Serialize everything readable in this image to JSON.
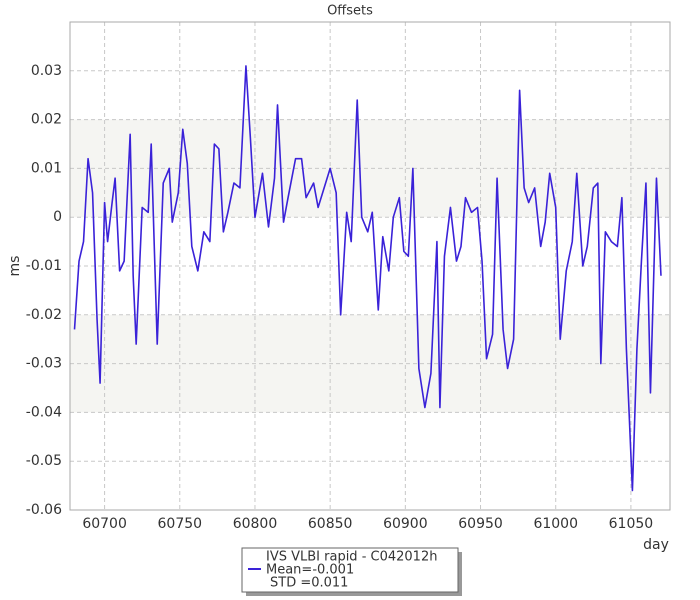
{
  "chart_data": {
    "type": "line",
    "title": "Offsets",
    "x_label": "day",
    "y_label": "ms",
    "xlim": [
      60677,
      61076
    ],
    "ylim": [
      -0.06,
      0.04
    ],
    "xticks": [
      60700,
      60750,
      60800,
      60850,
      60900,
      60950,
      61000,
      61050
    ],
    "yticks": [
      0.03,
      0.02,
      0.01,
      0,
      -0.01,
      -0.02,
      -0.03,
      -0.04,
      -0.05,
      -0.06
    ],
    "grid": true,
    "legend_position": "bottom",
    "x": [
      60680,
      60683,
      60686,
      60689,
      60692,
      60695,
      60697,
      60700,
      60702,
      60705,
      60707,
      60710,
      60713,
      60717,
      60719,
      60721,
      60725,
      60729,
      60731,
      60735,
      60739,
      60743,
      60745,
      60749,
      60752,
      60755,
      60758,
      60762,
      60766,
      60770,
      60773,
      60776,
      60779,
      60782,
      60786,
      60790,
      60794,
      60797,
      60800,
      60805,
      60809,
      60813,
      60815,
      60819,
      60822,
      60827,
      60831,
      60834,
      60839,
      60842,
      60846,
      60850,
      60854,
      60857,
      60861,
      60864,
      60868,
      60871,
      60875,
      60878,
      60882,
      60885,
      60889,
      60892,
      60896,
      60899,
      60902,
      60905,
      60909,
      60913,
      60917,
      60921,
      60923,
      60926,
      60930,
      60934,
      60937,
      60940,
      60944,
      60948,
      60951,
      60954,
      60958,
      60961,
      60965,
      60968,
      60972,
      60976,
      60979,
      60982,
      60986,
      60990,
      60993,
      60996,
      61000,
      61003,
      61007,
      61011,
      61014,
      61018,
      61021,
      61025,
      61028,
      61030,
      61033,
      61037,
      61041,
      61044,
      61047,
      61051,
      61054,
      61057,
      61060,
      61063,
      61067,
      61070
    ],
    "series": [
      {
        "name": "IVS VLBI rapid - C042012h",
        "stats": [
          "Mean=-0.001",
          "STD =0.011"
        ],
        "color": "#3a22d8",
        "values": [
          -0.023,
          -0.009,
          -0.005,
          0.012,
          0.005,
          -0.021,
          -0.034,
          0.003,
          -0.005,
          0.003,
          0.008,
          -0.011,
          -0.009,
          0.017,
          -0.012,
          -0.026,
          0.002,
          0.001,
          0.015,
          -0.026,
          0.007,
          0.01,
          -0.001,
          0.005,
          0.018,
          0.011,
          -0.006,
          -0.011,
          -0.003,
          -0.005,
          0.015,
          0.014,
          -0.003,
          0.001,
          0.007,
          0.006,
          0.031,
          0.016,
          0,
          0.009,
          -0.002,
          0.008,
          0.023,
          -0.001,
          0.004,
          0.012,
          0.012,
          0.004,
          0.007,
          0.002,
          0.006,
          0.01,
          0.005,
          -0.02,
          0.001,
          -0.005,
          0.024,
          0,
          -0.003,
          0.001,
          -0.019,
          -0.004,
          -0.011,
          0,
          0.004,
          -0.007,
          -0.008,
          0.01,
          -0.031,
          -0.039,
          -0.032,
          -0.005,
          -0.039,
          -0.008,
          0.002,
          -0.009,
          -0.006,
          0.004,
          0.001,
          0.002,
          -0.009,
          -0.029,
          -0.024,
          0.008,
          -0.023,
          -0.031,
          -0.025,
          0.026,
          0.006,
          0.003,
          0.006,
          -0.006,
          -0.001,
          0.009,
          0.002,
          -0.025,
          -0.011,
          -0.005,
          0.009,
          -0.01,
          -0.006,
          0.006,
          0.007,
          -0.03,
          -0.003,
          -0.005,
          -0.006,
          0.004,
          -0.027,
          -0.056,
          -0.027,
          -0.009,
          0.007,
          -0.036,
          0.008,
          -0.012
        ]
      }
    ]
  }
}
